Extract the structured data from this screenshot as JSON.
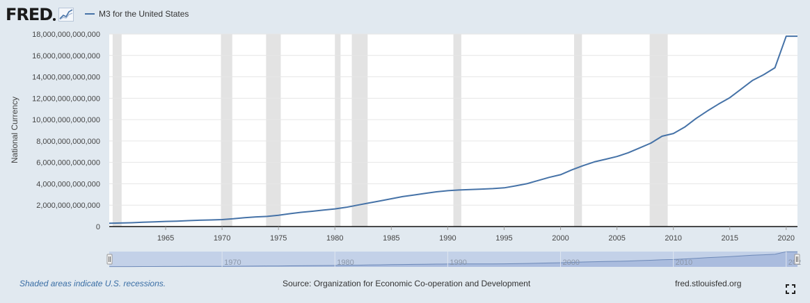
{
  "header": {
    "logo_text": "FRED",
    "legend_label": "M3 for the United States"
  },
  "colors": {
    "series": "#4572a7",
    "recession": "#e3e3e3",
    "navigator_fill": "#c3d1e8",
    "navigator_mask": "#aabcde",
    "background": "#e1e9f0"
  },
  "footer": {
    "recession_note": "Shaded areas indicate U.S. recessions.",
    "source": "Source: Organization for Economic Co-operation and Development",
    "site": "fred.stlouisfed.org",
    "fullscreen_icon": "fullscreen-icon"
  },
  "chart_data": {
    "type": "line",
    "title": "",
    "xlabel": "",
    "ylabel": "National Currency",
    "xlim": [
      1960,
      2021
    ],
    "ylim": [
      0,
      18000000000000
    ],
    "grid": true,
    "legend": "top-left",
    "x_ticks": [
      1965,
      1970,
      1975,
      1980,
      1985,
      1990,
      1995,
      2000,
      2005,
      2010,
      2015,
      2020
    ],
    "x_tick_labels": [
      "1965",
      "1970",
      "1975",
      "1980",
      "1985",
      "1990",
      "1995",
      "2000",
      "2005",
      "2010",
      "2015",
      "2020"
    ],
    "y_ticks": [
      0,
      2000000000000,
      4000000000000,
      6000000000000,
      8000000000000,
      10000000000000,
      12000000000000,
      14000000000000,
      16000000000000,
      18000000000000
    ],
    "y_tick_labels": [
      "0",
      "2,000,000,000,000",
      "4,000,000,000,000",
      "6,000,000,000,000",
      "8,000,000,000,000",
      "10,000,000,000,000",
      "12,000,000,000,000",
      "14,000,000,000,000",
      "16,000,000,000,000",
      "18,000,000,000,000"
    ],
    "navigator_labels": [
      {
        "x": 1970,
        "label": "1970"
      },
      {
        "x": 1980,
        "label": "1980"
      },
      {
        "x": 1990,
        "label": "1990"
      },
      {
        "x": 2000,
        "label": "2000"
      },
      {
        "x": 2010,
        "label": "2010"
      },
      {
        "x": 2020,
        "label": "202"
      }
    ],
    "recessions": [
      [
        1960.3,
        1961.1
      ],
      [
        1969.9,
        1970.9
      ],
      [
        1973.9,
        1975.2
      ],
      [
        1980.0,
        1980.5
      ],
      [
        1981.5,
        1982.9
      ],
      [
        1990.5,
        1991.2
      ],
      [
        2001.2,
        2001.9
      ],
      [
        2007.9,
        2009.5
      ]
    ],
    "series": [
      {
        "name": "M3 for the United States",
        "x": [
          1960,
          1961,
          1962,
          1963,
          1964,
          1965,
          1966,
          1967,
          1968,
          1969,
          1970,
          1971,
          1972,
          1973,
          1974,
          1975,
          1976,
          1977,
          1978,
          1979,
          1980,
          1981,
          1982,
          1983,
          1984,
          1985,
          1986,
          1987,
          1988,
          1989,
          1990,
          1991,
          1992,
          1993,
          1994,
          1995,
          1996,
          1997,
          1998,
          1999,
          2000,
          2001,
          2002,
          2003,
          2004,
          2005,
          2006,
          2007,
          2008,
          2009,
          2010,
          2011,
          2012,
          2013,
          2014,
          2015,
          2016,
          2017,
          2018,
          2019,
          2020,
          2021
        ],
        "values": [
          310000000000,
          330000000000,
          360000000000,
          400000000000,
          440000000000,
          480000000000,
          510000000000,
          550000000000,
          590000000000,
          620000000000,
          650000000000,
          730000000000,
          830000000000,
          900000000000,
          950000000000,
          1050000000000,
          1200000000000,
          1330000000000,
          1430000000000,
          1540000000000,
          1650000000000,
          1800000000000,
          2000000000000,
          2200000000000,
          2400000000000,
          2600000000000,
          2800000000000,
          2950000000000,
          3100000000000,
          3250000000000,
          3350000000000,
          3420000000000,
          3460000000000,
          3500000000000,
          3550000000000,
          3620000000000,
          3800000000000,
          4000000000000,
          4300000000000,
          4600000000000,
          4850000000000,
          5300000000000,
          5700000000000,
          6050000000000,
          6300000000000,
          6550000000000,
          6900000000000,
          7350000000000,
          7800000000000,
          8450000000000,
          8700000000000,
          9300000000000,
          10100000000000,
          10800000000000,
          11450000000000,
          12050000000000,
          12850000000000,
          13650000000000,
          14200000000000,
          14850000000000,
          17800000000000,
          17800000000000
        ]
      }
    ]
  }
}
